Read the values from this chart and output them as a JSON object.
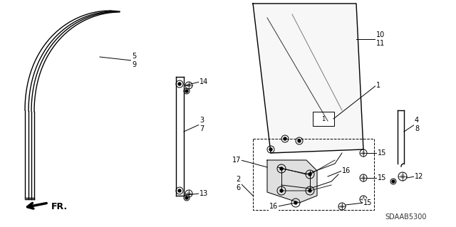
{
  "bg_color": "#ffffff",
  "line_color": "#000000",
  "diagram_code": "SDAAB5300"
}
